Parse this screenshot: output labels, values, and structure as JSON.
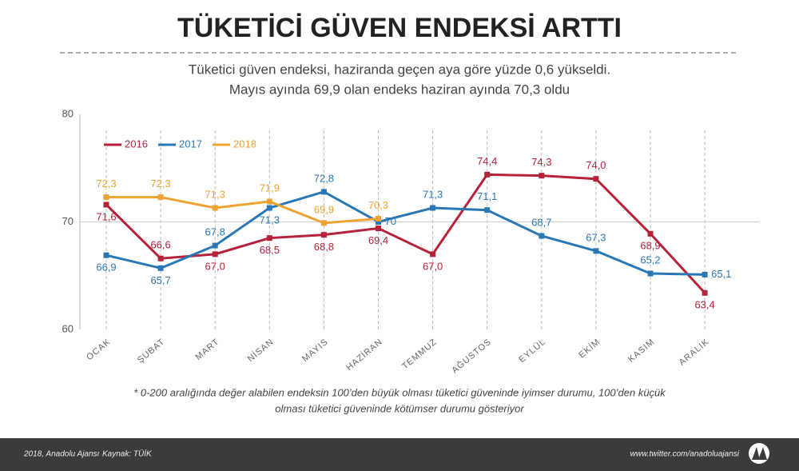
{
  "chart_data": {
    "type": "line",
    "title": "TÜKETİCİ GÜVEN ENDEKSİ ARTTI",
    "subtitle": [
      "Tüketici güven endeksi, haziranda geçen aya göre yüzde 0,6 yükseldi.",
      "Mayıs ayında 69,9 olan endeks haziran ayında 70,3 oldu"
    ],
    "categories": [
      "OCAK",
      "ŞUBAT",
      "MART",
      "NİSAN",
      "MAYIS",
      "HAZİRAN",
      "TEMMUZ",
      "AĞUSTOS",
      "EYLÜL",
      "EKİM",
      "KASIM",
      "ARALIK"
    ],
    "series": [
      {
        "name": "2016",
        "color": "#b5223a",
        "values": [
          71.6,
          66.6,
          67.0,
          68.5,
          68.8,
          69.4,
          67.0,
          74.4,
          74.3,
          74.0,
          68.9,
          63.4
        ],
        "value_labels": [
          "71,6",
          "66,6",
          "67,0",
          "68,5",
          "68,8",
          "69,4",
          "67,0",
          "74,4",
          "74,3",
          "74,0",
          "68,9",
          "63,4"
        ]
      },
      {
        "name": "2017",
        "color": "#2a77b5",
        "values": [
          66.9,
          65.7,
          67.8,
          71.3,
          72.8,
          70,
          71.3,
          71.1,
          68.7,
          67.3,
          65.2,
          65.1
        ],
        "value_labels": [
          "66,9",
          "65,7",
          "67,8",
          "71,3",
          "72,8",
          "70",
          "71,3",
          "71,1",
          "68,7",
          "67,3",
          "65,2",
          "65,1"
        ]
      },
      {
        "name": "2018",
        "color": "#eea232",
        "values": [
          72.3,
          72.3,
          71.3,
          71.9,
          69.9,
          70.3,
          null,
          null,
          null,
          null,
          null,
          null
        ],
        "value_labels": [
          "72,3",
          "72,3",
          "71,3",
          "71,9",
          "69,9",
          "70,3",
          null,
          null,
          null,
          null,
          null,
          null
        ]
      }
    ],
    "ylim": [
      60,
      80
    ],
    "yticks": [
      60,
      70,
      80
    ],
    "grid": true,
    "footnote": [
      "* 0-200 aralığında değer alabilen endeksin 100’den büyük olması tüketici güveninde iyimser durumu, 100’den küçük",
      "olması tüketici güveninde kötümser durumu gösteriyor"
    ],
    "footer": {
      "credit": "2018, Anadolu Ajansı",
      "source": "Kaynak: TÜİK",
      "link": "www.twitter.com/anadoluajansi"
    }
  }
}
